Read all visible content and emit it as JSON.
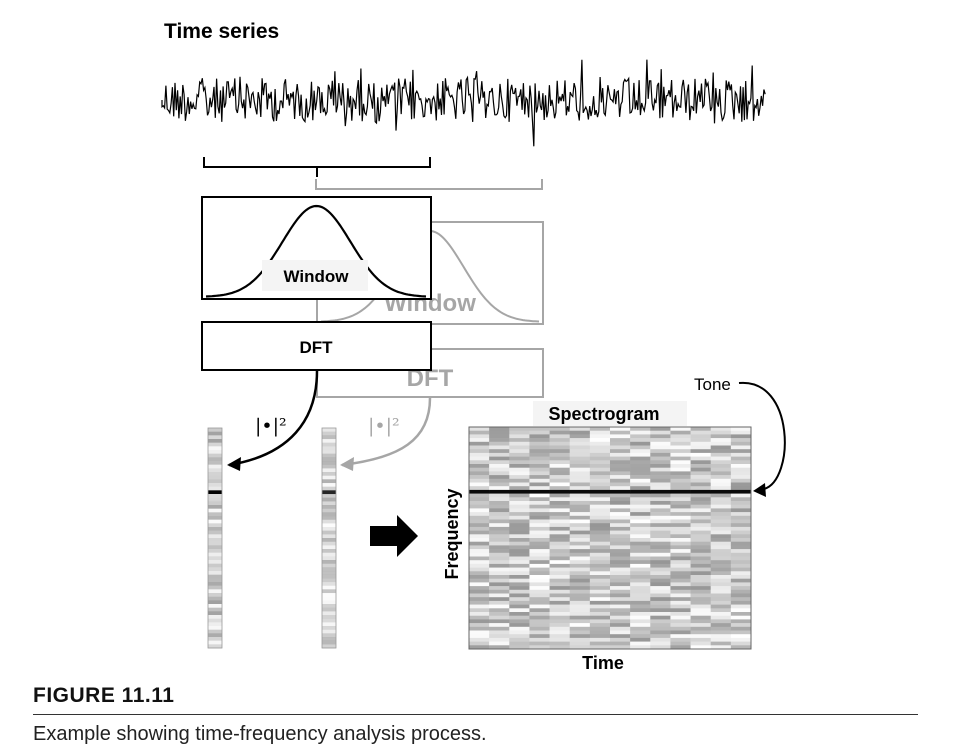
{
  "diagram": {
    "time_series_label": "Time series",
    "window_label": "Window",
    "window_label_ghost": "Window",
    "dft_label": "DFT",
    "dft_label_ghost": "DFT",
    "magnitude_label": "|•|²",
    "magnitude_label_ghost": "|•|²",
    "spectrogram_label": "Spectrogram",
    "frequency_label": "Frequency",
    "time_label": "Time",
    "tone_label": "Tone",
    "colors": {
      "primary": "#000000",
      "ghost": "#a6a6a6"
    }
  },
  "caption": {
    "figure_number": "FIGURE 11.11",
    "text": "Example showing time-frequency analysis process."
  }
}
